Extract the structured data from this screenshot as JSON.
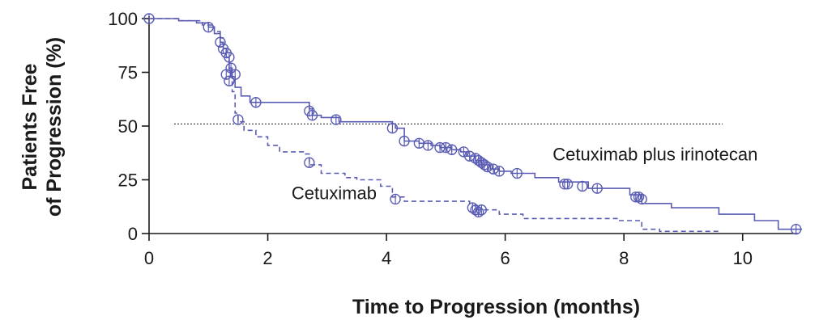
{
  "chart_data": {
    "type": "line",
    "subtype": "kaplan-meier",
    "xlabel": "Time to Progression (months)",
    "ylabel": [
      "Patients Free",
      "of Progression (%)"
    ],
    "xlim": [
      0,
      11.3
    ],
    "ylim": [
      0,
      100
    ],
    "xticks": [
      0,
      2,
      4,
      6,
      8,
      10
    ],
    "yticks": [
      0,
      25,
      50,
      75,
      100
    ],
    "median_reference_y": 51,
    "colors": {
      "line": "#5a5cb4",
      "axis": "#1a1a1a",
      "reference": "#1a1a1a"
    },
    "series": [
      {
        "name": "Cetuximab plus irinotecan",
        "style": "solid",
        "label_anchor": [
          6.8,
          34
        ],
        "points": [
          [
            0,
            100
          ],
          [
            0.2,
            100
          ],
          [
            0.5,
            99
          ],
          [
            0.8,
            98
          ],
          [
            1.0,
            96
          ],
          [
            1.1,
            93
          ],
          [
            1.2,
            89
          ],
          [
            1.25,
            86
          ],
          [
            1.3,
            82
          ],
          [
            1.35,
            77
          ],
          [
            1.4,
            73
          ],
          [
            1.45,
            68
          ],
          [
            1.55,
            64
          ],
          [
            1.7,
            61
          ],
          [
            2.0,
            61
          ],
          [
            2.7,
            58
          ],
          [
            2.75,
            55
          ],
          [
            2.9,
            54
          ],
          [
            3.2,
            52
          ],
          [
            4.1,
            51
          ],
          [
            4.15,
            49
          ],
          [
            4.3,
            43
          ],
          [
            4.55,
            42
          ],
          [
            4.75,
            41
          ],
          [
            4.9,
            40
          ],
          [
            5.1,
            39
          ],
          [
            5.25,
            38
          ],
          [
            5.35,
            36
          ],
          [
            5.5,
            34
          ],
          [
            5.6,
            32
          ],
          [
            5.75,
            30
          ],
          [
            5.9,
            29
          ],
          [
            6.1,
            28
          ],
          [
            6.5,
            26
          ],
          [
            6.9,
            24
          ],
          [
            7.4,
            21
          ],
          [
            8.1,
            18
          ],
          [
            8.3,
            14
          ],
          [
            8.8,
            12
          ],
          [
            9.6,
            9
          ],
          [
            10.2,
            6
          ],
          [
            10.6,
            2
          ],
          [
            11.0,
            2
          ]
        ],
        "censor": [
          [
            0,
            100
          ],
          [
            1.0,
            96
          ],
          [
            1.2,
            89
          ],
          [
            1.25,
            86
          ],
          [
            1.3,
            84
          ],
          [
            1.35,
            82
          ],
          [
            1.38,
            77
          ],
          [
            1.3,
            74
          ],
          [
            1.35,
            71
          ],
          [
            1.45,
            74
          ],
          [
            1.8,
            61
          ],
          [
            2.7,
            57
          ],
          [
            2.75,
            55
          ],
          [
            3.15,
            53
          ],
          [
            4.1,
            49
          ],
          [
            4.3,
            43
          ],
          [
            4.55,
            42
          ],
          [
            4.7,
            41
          ],
          [
            4.9,
            40
          ],
          [
            5.0,
            40
          ],
          [
            5.1,
            39
          ],
          [
            5.3,
            38
          ],
          [
            5.4,
            36
          ],
          [
            5.5,
            35
          ],
          [
            5.55,
            34
          ],
          [
            5.6,
            33
          ],
          [
            5.65,
            32
          ],
          [
            5.7,
            31
          ],
          [
            5.8,
            30
          ],
          [
            5.9,
            29
          ],
          [
            6.2,
            28
          ],
          [
            7.0,
            23
          ],
          [
            7.05,
            23
          ],
          [
            7.3,
            22
          ],
          [
            7.55,
            21
          ],
          [
            8.2,
            17
          ],
          [
            8.25,
            17
          ],
          [
            8.3,
            16
          ],
          [
            10.9,
            2
          ]
        ]
      },
      {
        "name": "Cetuximab",
        "style": "dashed",
        "label_anchor": [
          2.4,
          16
        ],
        "points": [
          [
            0,
            100
          ],
          [
            0.5,
            99
          ],
          [
            0.9,
            97
          ],
          [
            1.1,
            94
          ],
          [
            1.2,
            91
          ],
          [
            1.25,
            86
          ],
          [
            1.3,
            82
          ],
          [
            1.35,
            76
          ],
          [
            1.4,
            66
          ],
          [
            1.45,
            56
          ],
          [
            1.5,
            52
          ],
          [
            1.6,
            48
          ],
          [
            1.8,
            45
          ],
          [
            2.0,
            41
          ],
          [
            2.2,
            38
          ],
          [
            2.6,
            37
          ],
          [
            2.7,
            32
          ],
          [
            2.9,
            28
          ],
          [
            3.3,
            26
          ],
          [
            3.5,
            25
          ],
          [
            3.9,
            22
          ],
          [
            4.1,
            17
          ],
          [
            4.3,
            15
          ],
          [
            5.4,
            13
          ],
          [
            5.5,
            11
          ],
          [
            5.9,
            9
          ],
          [
            6.3,
            7
          ],
          [
            7.9,
            6
          ],
          [
            8.3,
            2
          ],
          [
            8.6,
            1
          ],
          [
            9.6,
            1
          ]
        ],
        "censor": [
          [
            1.5,
            53
          ],
          [
            2.7,
            33
          ],
          [
            4.15,
            16
          ],
          [
            5.45,
            12
          ],
          [
            5.5,
            11
          ],
          [
            5.55,
            10
          ],
          [
            5.6,
            11
          ]
        ]
      }
    ]
  }
}
